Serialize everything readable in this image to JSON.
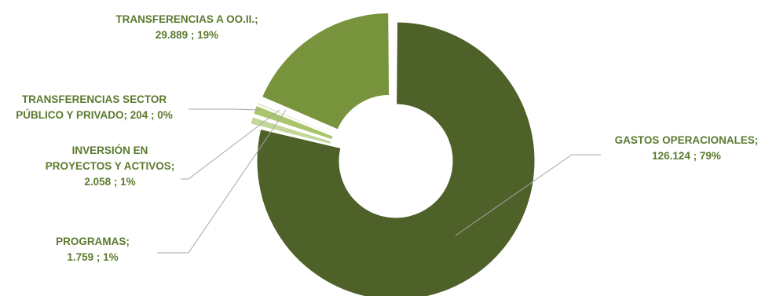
{
  "chart_data": {
    "type": "pie",
    "style": "doughnut-exploded",
    "title": "",
    "legend": "none",
    "label_color": "#5b7a2e",
    "leader_line_color": "#a6a6a6",
    "slices": [
      {
        "category": "GASTOS OPERACIONALES",
        "value": 126124,
        "value_label": "126.124",
        "percent_label": "79%",
        "color": "#4e6128",
        "label_lines": [
          "GASTOS OPERACIONALES;",
          "126.124 ; 79%"
        ]
      },
      {
        "category": "PROGRAMAS",
        "value": 1759,
        "value_label": "1.759",
        "percent_label": "1%",
        "color": "#c4d79b",
        "label_lines": [
          "PROGRAMAS;",
          "1.759 ; 1%"
        ]
      },
      {
        "category": "INVERSIÓN EN PROYECTOS Y ACTIVOS",
        "value": 2058,
        "value_label": "2.058",
        "percent_label": "1%",
        "color": "#a9c46b",
        "label_lines": [
          "INVERSIÓN EN",
          "PROYECTOS Y ACTIVOS;",
          "2.058 ; 1%"
        ]
      },
      {
        "category": "TRANSFERENCIAS SECTOR PÚBLICO Y PRIVADO",
        "value": 204,
        "value_label": "204",
        "percent_label": "0%",
        "color": "#d8e4bc",
        "label_lines": [
          "TRANSFERENCIAS SECTOR",
          "PÚBLICO Y PRIVADO; 204 ; 0%"
        ]
      },
      {
        "category": "TRANSFERENCIAS A OO.II.",
        "value": 29889,
        "value_label": "29.889",
        "percent_label": "19%",
        "color": "#77933c",
        "label_lines": [
          "TRANSFERENCIAS A OO.II.;",
          "29.889 ; 19%"
        ]
      }
    ]
  }
}
